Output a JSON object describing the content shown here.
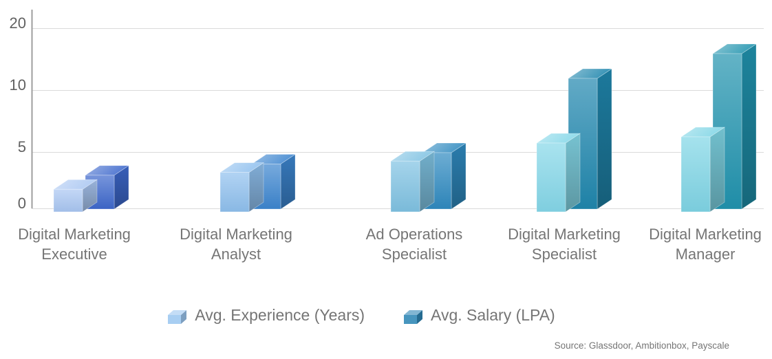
{
  "page": {
    "background": "#ffffff"
  },
  "chart_data": {
    "type": "bar",
    "style": "3d-clustered-column",
    "title": "",
    "categories": [
      [
        "Digital Marketing",
        "Executive"
      ],
      [
        "Digital Marketing",
        "Analyst"
      ],
      [
        "Ad Operations",
        "Specialist"
      ],
      [
        "Digital Marketing",
        "Specialist"
      ],
      [
        "Digital Marketing",
        "Manager"
      ]
    ],
    "series": [
      {
        "name": "Avg. Experience (Years)",
        "values": [
          2,
          3.5,
          4.5,
          6,
          6.5
        ],
        "colors": [
          "#a9c6f2",
          "#8fc0ee",
          "#7fc2e2",
          "#84d7e8",
          "#7fd5e5"
        ],
        "legend_swatch": "#9cc7f0"
      },
      {
        "name": "Avg. Salary (LPA)",
        "values": [
          3,
          4,
          5,
          12,
          16
        ],
        "colors": [
          "#3d68cc",
          "#3c85cf",
          "#2f8ac0",
          "#1f86ad",
          "#2093ae"
        ],
        "legend_swatch": "#2e86b5"
      }
    ],
    "y_axis": {
      "ticks": [
        0,
        5,
        10,
        20
      ],
      "scale": "non-linear (ticks equally spaced)"
    },
    "grid": true,
    "legend_position": "bottom",
    "source_note": "Source: Glassdoor, Ambitionbox, Payscale",
    "text_color": "#757575",
    "tick_text_color": "#616161",
    "axis_color": "#9e9e9e",
    "gridline_color": "#dadada"
  }
}
